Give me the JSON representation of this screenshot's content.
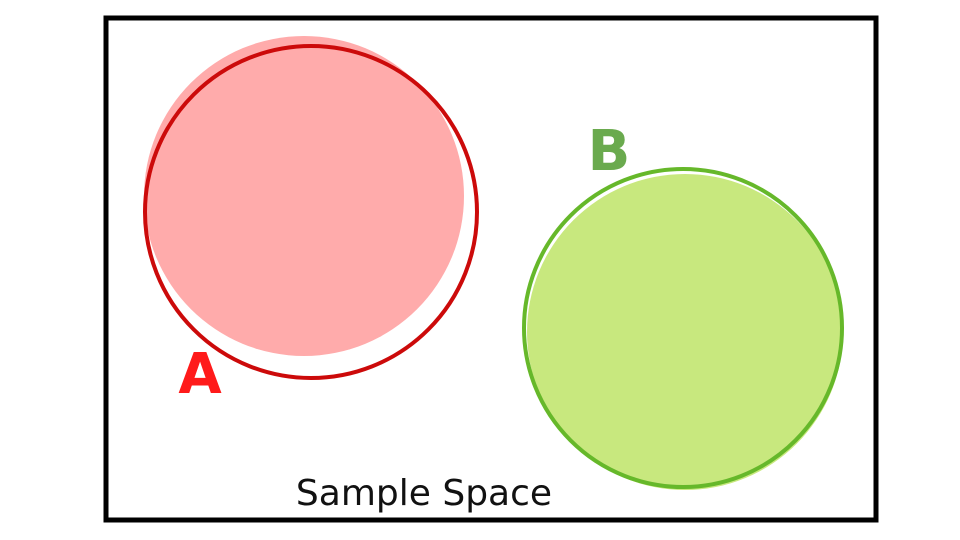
{
  "diagram": {
    "caption": "Sample Space",
    "sets": [
      {
        "label": "A",
        "fill_color": "#ffabab",
        "stroke_color": "#cc0a0a",
        "label_color": "#ff1a1a"
      },
      {
        "label": "B",
        "fill_color": "#c8e87e",
        "stroke_color": "#66b82a",
        "label_color": "#6aaa4e"
      }
    ],
    "frame_color": "#000000"
  }
}
